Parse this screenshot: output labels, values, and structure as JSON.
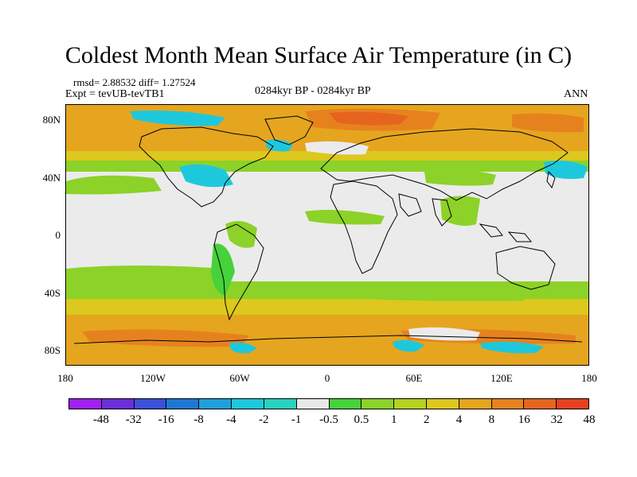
{
  "title": "Coldest Month Mean Surface Air Temperature (in C)",
  "stats": "rmsd= 2.88532 diff= 1.27524",
  "experiment": "Expt = tevUB-tevTB1",
  "period": "0284kyr BP - 0284kyr BP",
  "season": "ANN",
  "lat_ticks": [
    "80N",
    "40N",
    "0",
    "40S",
    "80S"
  ],
  "lon_ticks": [
    "180",
    "120W",
    "60W",
    "0",
    "60E",
    "120E",
    "180"
  ],
  "colorbar": {
    "colors": [
      "#a020f0",
      "#6a2fd8",
      "#3c50d8",
      "#1e78d2",
      "#1ea0dc",
      "#1ec8dc",
      "#2ad2be",
      "#e8e8e8",
      "#46d23a",
      "#8cd228",
      "#b4d21e",
      "#dcc81e",
      "#e6a51e",
      "#e6821e",
      "#e6641e",
      "#e6411e"
    ],
    "labels": [
      "-48",
      "-32",
      "-16",
      "-8",
      "-4",
      "-2",
      "-1",
      "-0.5",
      "0.5",
      "1",
      "2",
      "4",
      "8",
      "16",
      "32",
      "48"
    ]
  },
  "chart_data": {
    "type": "heatmap",
    "title": "Coldest Month Mean Surface Air Temperature (in C)",
    "projection": "cylindrical-equidistant",
    "lon_range": [
      -180,
      180
    ],
    "lat_range": [
      -90,
      90
    ],
    "contour_levels": [
      -48,
      -32,
      -16,
      -8,
      -4,
      -2,
      -1,
      -0.5,
      0.5,
      1,
      2,
      4,
      8,
      16,
      32,
      48
    ],
    "stats": {
      "rmsd": 2.88532,
      "diff": 1.27524
    }
  }
}
